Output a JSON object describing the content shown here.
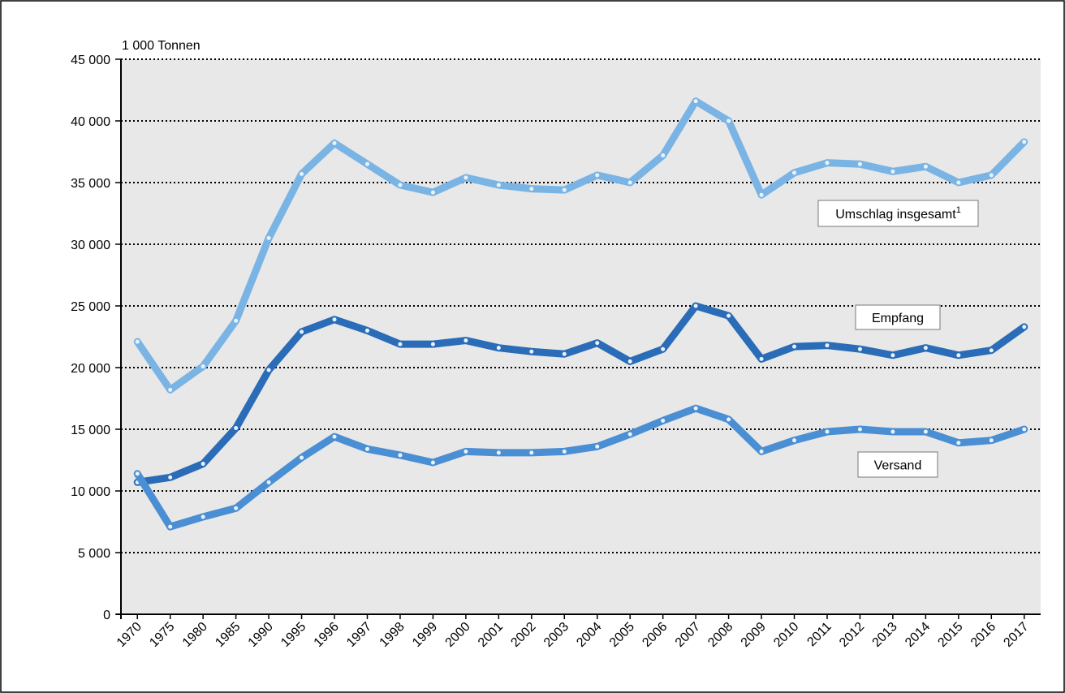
{
  "chart_data": {
    "type": "line",
    "y_label": "1 000 Tonnen",
    "categories": [
      "1970",
      "1975",
      "1980",
      "1985",
      "1990",
      "1995",
      "1996",
      "1997",
      "1998",
      "1999",
      "2000",
      "2001",
      "2002",
      "2003",
      "2004",
      "2005",
      "2006",
      "2007",
      "2008",
      "2009",
      "2010",
      "2011",
      "2012",
      "2013",
      "2014",
      "2015",
      "2016",
      "2017"
    ],
    "series": [
      {
        "name": "Umschlag insgesamt",
        "note": "1",
        "color": "#7ab4e4",
        "values": [
          22100,
          18200,
          20100,
          23800,
          30500,
          35700,
          38200,
          36500,
          34800,
          34200,
          35400,
          34800,
          34500,
          34400,
          35600,
          35000,
          37200,
          41600,
          40000,
          34000,
          35800,
          36600,
          36500,
          35900,
          36300,
          35000,
          35600,
          38300
        ]
      },
      {
        "name": "Empfang",
        "color": "#2a6cb8",
        "values": [
          10700,
          11100,
          12200,
          15100,
          19800,
          22900,
          23900,
          23000,
          21900,
          21900,
          22200,
          21600,
          21300,
          21100,
          22000,
          20500,
          21500,
          25000,
          24200,
          20700,
          21700,
          21800,
          21500,
          21000,
          21600,
          21000,
          21400,
          23300
        ]
      },
      {
        "name": "Versand",
        "color": "#4a8ed4",
        "values": [
          11400,
          7100,
          7900,
          8600,
          10700,
          12700,
          14400,
          13400,
          12900,
          12300,
          13200,
          13100,
          13100,
          13200,
          13600,
          14600,
          15700,
          16700,
          15800,
          13200,
          14100,
          14800,
          15000,
          14800,
          14800,
          13900,
          14100,
          15000
        ]
      }
    ],
    "ylim": [
      0,
      45000
    ],
    "yticks": [
      0,
      {
        "value": 5000,
        "label": "5 000"
      },
      {
        "value": 10000,
        "label": "10 000"
      },
      {
        "value": 15000,
        "label": "15 000"
      },
      {
        "value": 20000,
        "label": "20 000"
      },
      {
        "value": 25000,
        "label": "25 000"
      },
      {
        "value": 30000,
        "label": "30 000"
      },
      {
        "value": 35000,
        "label": "35 000"
      },
      {
        "value": 40000,
        "label": "40 000"
      },
      {
        "value": 45000,
        "label": "45 000"
      }
    ],
    "grid": true
  }
}
